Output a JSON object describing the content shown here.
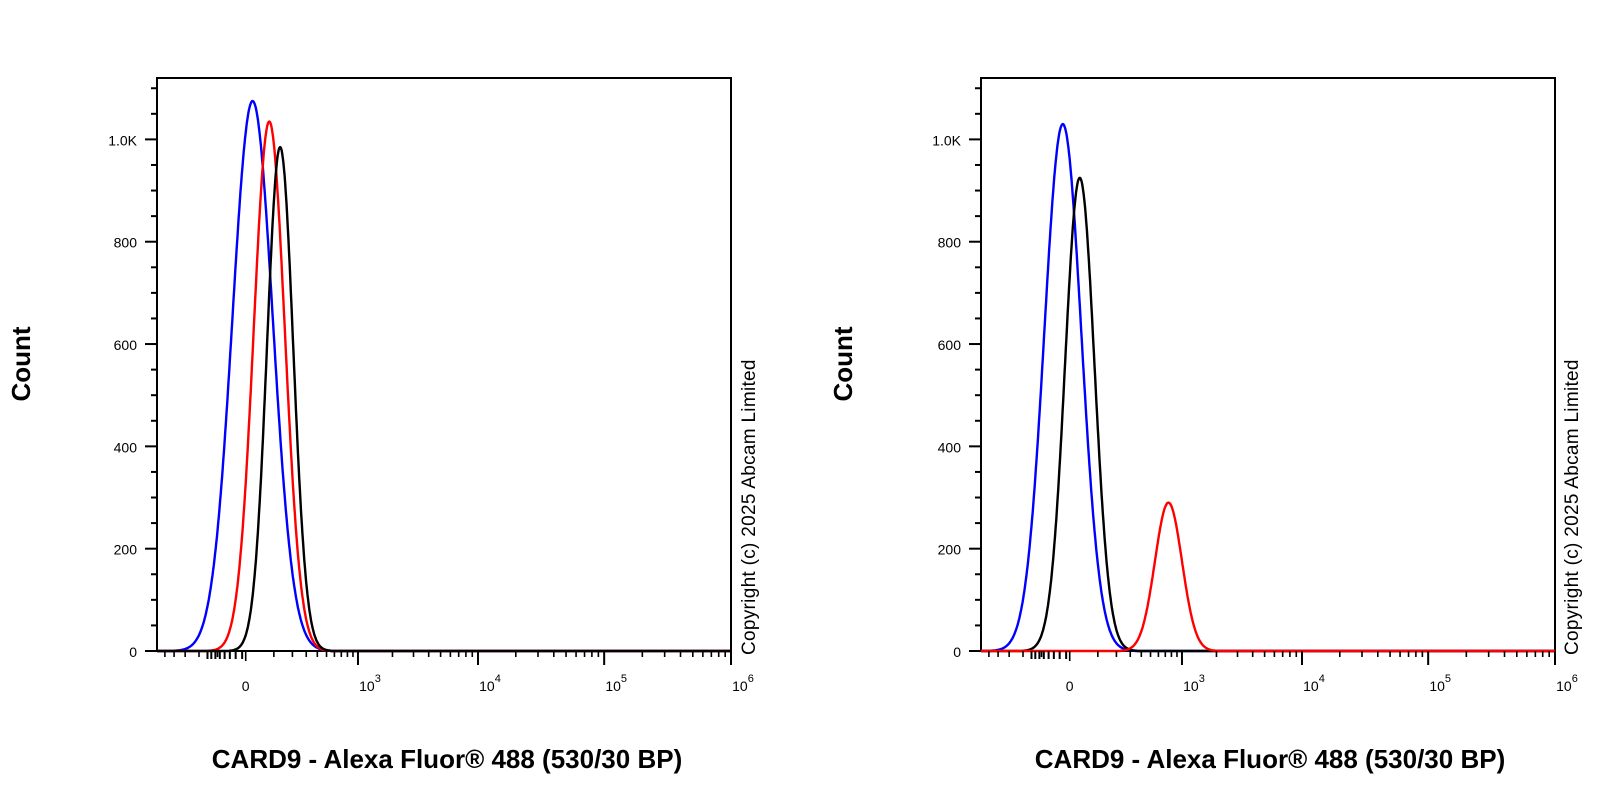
{
  "chart_data": [
    {
      "type": "line",
      "subtype": "flow-cytometry-histogram",
      "xlabel": "CARD9 - Alexa Fluor® 488 (530/30 BP)",
      "ylabel": "Count",
      "copyright": "Copyright (c) 2025 Abcam Limited",
      "xscale": "biexponential",
      "xlim": [
        -600,
        1000000
      ],
      "ylim": [
        0,
        1120
      ],
      "x_ticks": [
        {
          "value": 0,
          "base": "0",
          "exp": ""
        },
        {
          "value": 1000,
          "base": "10",
          "exp": "3"
        },
        {
          "value": 10000,
          "base": "10",
          "exp": "4"
        },
        {
          "value": 100000,
          "base": "10",
          "exp": "5"
        },
        {
          "value": 1000000,
          "base": "10",
          "exp": "6"
        }
      ],
      "y_ticks": [
        {
          "value": 0,
          "label": "0"
        },
        {
          "value": 200,
          "label": "200"
        },
        {
          "value": 400,
          "label": "400"
        },
        {
          "value": 600,
          "label": "600"
        },
        {
          "value": 800,
          "label": "800"
        },
        {
          "value": 1000,
          "label": "1.0K"
        }
      ],
      "grid": false,
      "series": [
        {
          "color": "#0000ff",
          "peak_x": 20,
          "peak_y": 1075,
          "width": 75
        },
        {
          "color": "#ff0000",
          "peak_x": 80,
          "peak_y": 1035,
          "width": 75
        },
        {
          "color": "#000000",
          "peak_x": 130,
          "peak_y": 985,
          "width": 75
        }
      ]
    },
    {
      "type": "line",
      "subtype": "flow-cytometry-histogram",
      "xlabel": "CARD9 - Alexa Fluor® 488 (530/30 BP)",
      "ylabel": "Count",
      "copyright": "Copyright (c) 2025 Abcam Limited",
      "xscale": "biexponential",
      "xlim": [
        -600,
        1000000
      ],
      "ylim": [
        0,
        1120
      ],
      "x_ticks": [
        {
          "value": 0,
          "base": "0",
          "exp": ""
        },
        {
          "value": 1000,
          "base": "10",
          "exp": "3"
        },
        {
          "value": 10000,
          "base": "10",
          "exp": "4"
        },
        {
          "value": 100000,
          "base": "10",
          "exp": "5"
        },
        {
          "value": 1000000,
          "base": "10",
          "exp": "6"
        }
      ],
      "y_ticks": [
        {
          "value": 0,
          "label": "0"
        },
        {
          "value": 200,
          "label": "200"
        },
        {
          "value": 400,
          "label": "400"
        },
        {
          "value": 600,
          "label": "600"
        },
        {
          "value": 800,
          "label": "800"
        },
        {
          "value": 1000,
          "label": "1.0K"
        }
      ],
      "grid": false,
      "series": [
        {
          "color": "#0000ff",
          "peak_x": -20,
          "peak_y": 1030,
          "width": 55
        },
        {
          "color": "#000000",
          "peak_x": 30,
          "peak_y": 925,
          "width": 55
        },
        {
          "color": "#ff0000",
          "peak_x": 750,
          "peak_y": 290,
          "width": 250
        }
      ]
    }
  ]
}
